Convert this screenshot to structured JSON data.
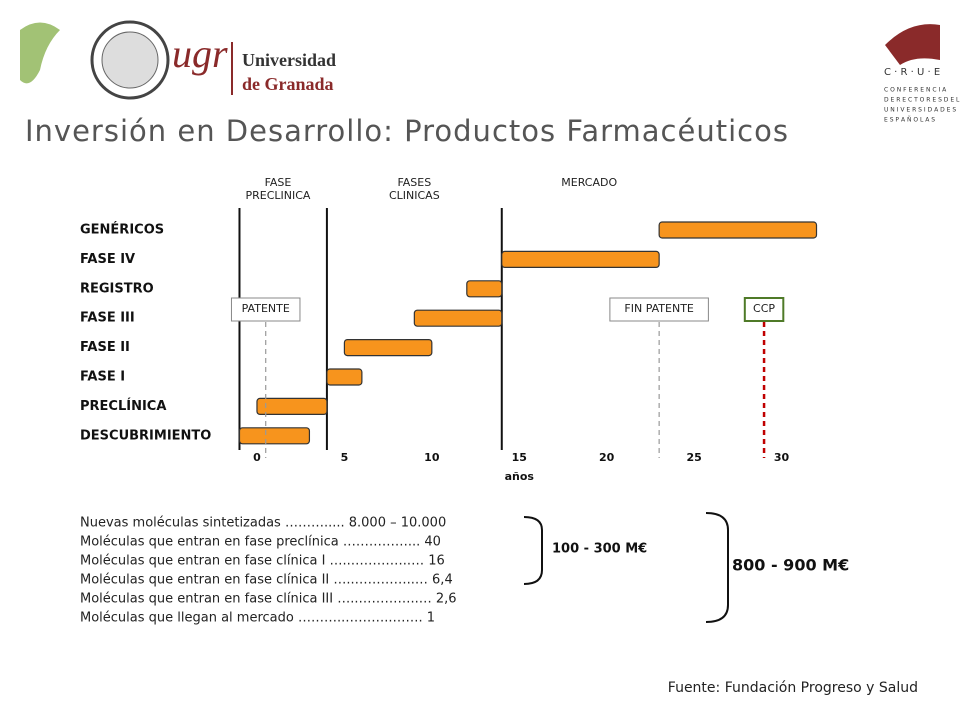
{
  "header": {
    "logo_text": "ugr",
    "university": [
      "Universidad",
      "de Granada"
    ],
    "crue": [
      "C · R · U · E",
      "C O N F E R E N C I A",
      "D E  R E C T O R E S  D E  L A S",
      "U N I V E R S I D A D E S",
      "E S P A Ñ O L A S"
    ]
  },
  "chart_data": {
    "type": "gantt",
    "title": "Inversión en Desarrollo: Productos Farmacéuticos",
    "categories": [
      "GENÉRICOS",
      "FASE IV",
      "REGISTRO",
      "FASE III",
      "FASE II",
      "FASE I",
      "PRECLÍNICA",
      "DESCUBRIMIENTO"
    ],
    "starts": [
      23,
      14,
      12,
      9,
      5,
      4,
      0,
      -1
    ],
    "ends": [
      32,
      23,
      14,
      14,
      10,
      6,
      4,
      3
    ],
    "color": "#f7941d",
    "xlim": [
      -2,
      33
    ],
    "xticks": [
      0,
      5,
      10,
      15,
      20,
      25,
      30
    ],
    "xlabel": "años",
    "phases": [
      {
        "label": [
          "FASE",
          "PRECLINICA"
        ],
        "x": 1.2
      },
      {
        "label": [
          "FASES",
          "CLINICAS"
        ],
        "x": 9
      },
      {
        "label": [
          "MERCADO"
        ],
        "x": 19
      }
    ],
    "dividers": [
      -1,
      4,
      14
    ],
    "markers": [
      {
        "label": "PATENTE",
        "x": 0.5,
        "color": "#999999"
      },
      {
        "label": "FIN PATENTE",
        "x": 23,
        "color": "#999999"
      },
      {
        "label": "CCP",
        "x": 29,
        "color": "#c00000"
      }
    ]
  },
  "notes": {
    "lines": [
      "Nuevas moléculas sintetizadas ………..... 8.000 – 10.000",
      "Moléculas que entran en fase preclínica ……………... 40",
      "Moléculas que entran en fase clínica I …..…………..… 16",
      "Moléculas que entran en fase clínica II …..…………..… 6,4",
      "Moléculas que entran en fase clínica III …..…………..… 2,6",
      "Moléculas que llegan al mercado ………..………..……. 1"
    ],
    "bracket_small": "100 - 300 M€",
    "bracket_large": "800 - 900 M€"
  },
  "source": "Fuente: Fundación Progreso y Salud"
}
